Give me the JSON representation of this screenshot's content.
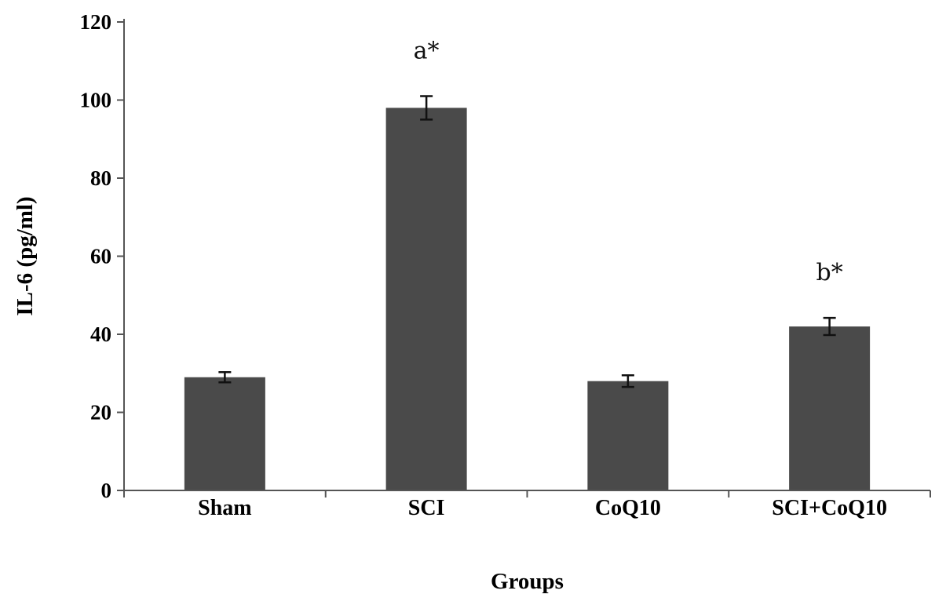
{
  "chart_data": {
    "type": "bar",
    "title": "",
    "xlabel": "Groups",
    "ylabel": "IL-6 (pg/ml)",
    "categories": [
      "Sham",
      "SCI",
      "CoQ10",
      "SCI+CoQ10"
    ],
    "values": [
      29,
      98,
      28,
      42
    ],
    "errors": [
      1.3,
      3,
      1.5,
      2.2
    ],
    "annotations": [
      "",
      "a*",
      "",
      "b*"
    ],
    "ylim": [
      0,
      120
    ],
    "yticks": [
      0,
      20,
      40,
      60,
      80,
      100,
      120
    ],
    "ytick_labels": [
      "0",
      "20",
      "40",
      "60",
      "80",
      "100",
      "120"
    ],
    "bar_color": "#4a4a4a",
    "grid": false,
    "legend": "none"
  }
}
